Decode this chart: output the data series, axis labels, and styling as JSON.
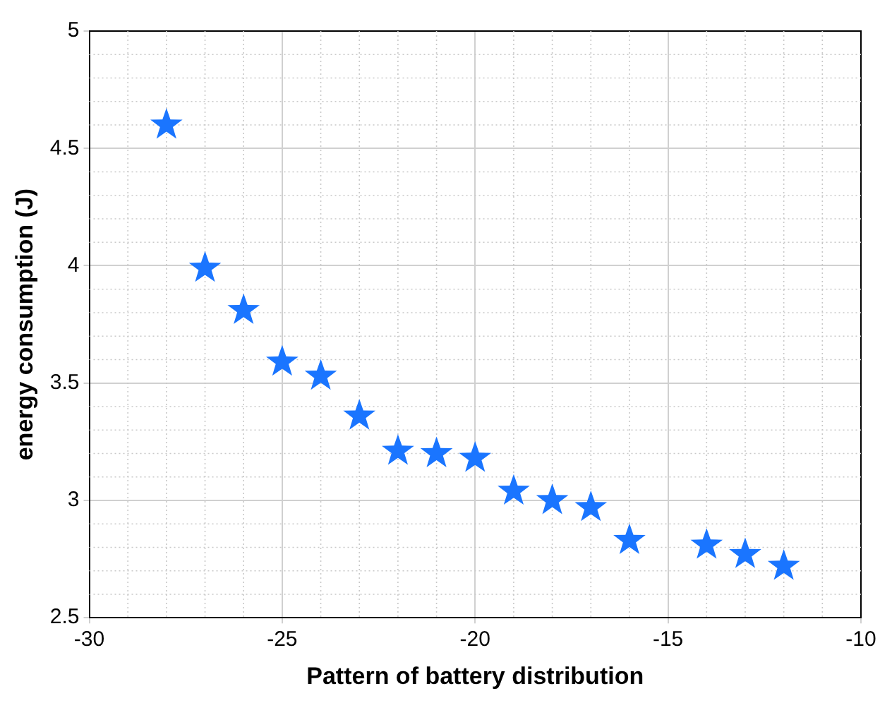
{
  "chart_data": {
    "type": "scatter",
    "xlabel": "Pattern of battery distribution",
    "ylabel": "energy consumption (J)",
    "x": [
      -28,
      -27,
      -26,
      -25,
      -24,
      -23,
      -22,
      -21,
      -20,
      -19,
      -18,
      -17,
      -16,
      -14,
      -13,
      -12
    ],
    "series": [
      {
        "color": "#1a75ff",
        "values": [
          4.6,
          3.99,
          3.81,
          3.59,
          3.53,
          3.36,
          3.21,
          3.2,
          3.18,
          3.04,
          3.0,
          2.97,
          2.83,
          2.81,
          2.77,
          2.72
        ]
      }
    ],
    "xlim": [
      -30,
      -10
    ],
    "xticks": [
      -30,
      -25,
      -20,
      -15,
      -10
    ],
    "ylim": [
      2.5,
      5
    ],
    "yticks": [
      2.5,
      3,
      3.5,
      4,
      4.5,
      5
    ],
    "grid": true,
    "legend": false,
    "marker": "star"
  }
}
